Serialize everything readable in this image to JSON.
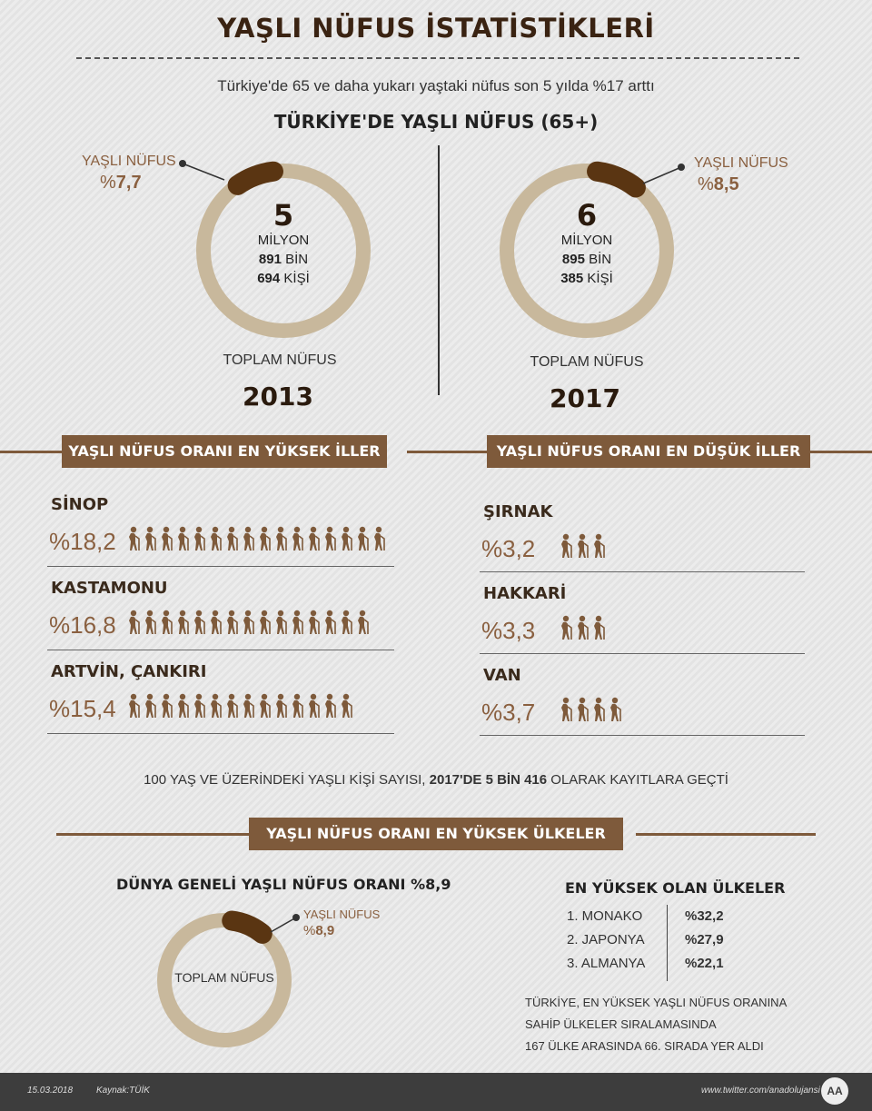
{
  "header": {
    "title": "YAŞLI NÜFUS İSTATİSTİKLERİ",
    "subtitle": "Türkiye'de 65 ve daha yukarı yaştaki nüfus son 5 yılda %17 arttı",
    "section_title": "TÜRKİYE'DE YAŞLI NÜFUS (65+)"
  },
  "colors": {
    "brown": "#7e5a3b",
    "dark_brown": "#5a3512",
    "ring": "#c8b89c",
    "text_accent": "#8a6040"
  },
  "donuts": [
    {
      "label": "YAŞLI NÜFUS",
      "pct_prefix": "%",
      "pct_value": "7,7",
      "pct_number": 7.7,
      "line1": "5",
      "line2": "MİLYON",
      "line3_bold": "891",
      "line3_rest": " BİN",
      "line4_bold": "694",
      "line4_rest": " KİŞİ",
      "total_label": "TOPLAM NÜFUS",
      "year": "2013"
    },
    {
      "label": "YAŞLI NÜFUS",
      "pct_prefix": "%",
      "pct_value": "8,5",
      "pct_number": 8.5,
      "line1": "6",
      "line2": "MİLYON",
      "line3_bold": "895",
      "line3_rest": " BİN",
      "line4_bold": "385",
      "line4_rest": " KİŞİ",
      "total_label": "TOPLAM NÜFUS",
      "year": "2017"
    }
  ],
  "highest": {
    "banner": "YAŞLI NÜFUS ORANI EN YÜKSEK İLLER",
    "rows": [
      {
        "name": "SİNOP",
        "value": "%18,2",
        "icons": 16
      },
      {
        "name": "KASTAMONU",
        "value": "%16,8",
        "icons": 15
      },
      {
        "name": "ARTVİN, ÇANKIRI",
        "value": "%15,4",
        "icons": 14
      }
    ]
  },
  "lowest": {
    "banner": "YAŞLI NÜFUS ORANI EN DÜŞÜK İLLER",
    "rows": [
      {
        "name": "ŞIRNAK",
        "value": "%3,2",
        "icons": 3
      },
      {
        "name": "HAKKARİ",
        "value": "%3,3",
        "icons": 3
      },
      {
        "name": "VAN",
        "value": "%3,7",
        "icons": 4
      }
    ]
  },
  "hundred": {
    "prefix": "100 YAŞ VE ÜZERİNDEKİ YAŞLI KİŞİ SAYISI, ",
    "bold": "2017'DE 5 BİN 416",
    "suffix": " OLARAK KAYITLARA GEÇTİ"
  },
  "world": {
    "banner": "YAŞLI NÜFUS ORANI EN YÜKSEK ÜLKELER",
    "title": "DÜNYA GENELİ YAŞLI NÜFUS ORANI %8,9",
    "donut_label": "YAŞLI NÜFUS",
    "donut_pct_prefix": "%",
    "donut_pct_value": "8,9",
    "donut_pct_number": 8.9,
    "donut_center": "TOPLAM NÜFUS"
  },
  "countries": {
    "title": "EN YÜKSEK OLAN ÜLKELER",
    "rows": [
      {
        "name": "1.  MONAKO",
        "pct": "%32,2"
      },
      {
        "name": "2.  JAPONYA",
        "pct": "%27,9"
      },
      {
        "name": "3.  ALMANYA",
        "pct": "%22,1"
      }
    ],
    "note_lines": [
      "TÜRKİYE, EN YÜKSEK YAŞLI NÜFUS ORANINA",
      "SAHİP ÜLKELER SIRALAMASINDA",
      "167 ÜLKE ARASINDA 66. SIRADA YER ALDI"
    ]
  },
  "footer": {
    "date": "15.03.2018",
    "source": "Kaynak:TÜİK",
    "url": "www.twitter.com/anadolujansi",
    "logo_text": "AA"
  }
}
